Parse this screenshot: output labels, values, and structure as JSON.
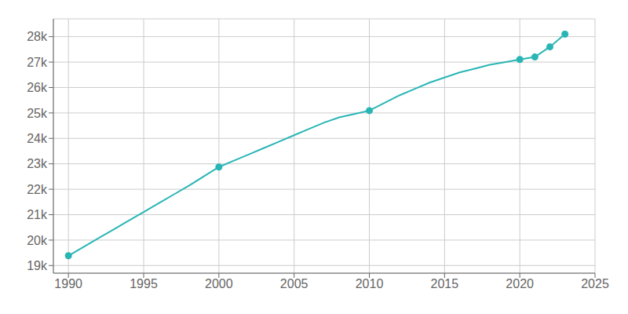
{
  "chart_data": {
    "type": "line",
    "series": [
      {
        "type": "line",
        "color": "#2ab5b5",
        "x": [
          1990,
          1991,
          1992,
          1993,
          1994,
          1995,
          1996,
          1997,
          1998,
          1999,
          2000,
          2001,
          2002,
          2003,
          2004,
          2005,
          2006,
          2007,
          2008,
          2009,
          2010,
          2011,
          2012,
          2013,
          2014,
          2015,
          2016,
          2017,
          2018,
          2019,
          2020,
          2021,
          2022,
          2023
        ],
        "values": [
          19386,
          19730,
          20074,
          20418,
          20762,
          21106,
          21450,
          21794,
          22138,
          22506,
          22874,
          23124,
          23374,
          23624,
          23874,
          24124,
          24374,
          24624,
          24824,
          24958,
          25092,
          25392,
          25692,
          25942,
          26192,
          26392,
          26592,
          26742,
          26892,
          26992,
          27102,
          27200,
          27600,
          28100
        ]
      },
      {
        "type": "scatter",
        "color": "#2ab5b5",
        "x": [
          1990,
          2000,
          2010,
          2020,
          2021,
          2022,
          2023
        ],
        "values": [
          19386,
          22874,
          25092,
          27102,
          27200,
          27600,
          28100
        ]
      }
    ],
    "xlim": [
      1989,
      2025
    ],
    "xticks": [
      1990,
      1995,
      2000,
      2005,
      2010,
      2015,
      2020,
      2025
    ],
    "ylim": [
      18700,
      28700
    ],
    "yticks": [
      {
        "value": 19000,
        "label": "19k"
      },
      {
        "value": 20000,
        "label": "20k"
      },
      {
        "value": 21000,
        "label": "21k"
      },
      {
        "value": 22000,
        "label": "22k"
      },
      {
        "value": 23000,
        "label": "23k"
      },
      {
        "value": 24000,
        "label": "24k"
      },
      {
        "value": 25000,
        "label": "25k"
      },
      {
        "value": 26000,
        "label": "26k"
      },
      {
        "value": 27000,
        "label": "27k"
      },
      {
        "value": 28000,
        "label": "28k"
      }
    ],
    "grid": true
  }
}
